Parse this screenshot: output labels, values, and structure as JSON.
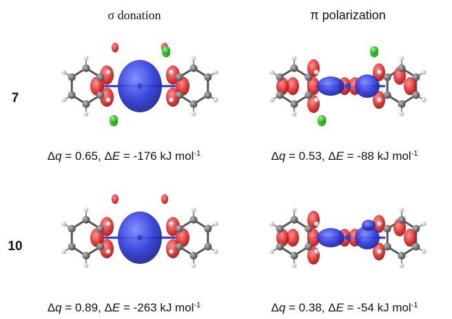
{
  "columns": [
    "σ donation",
    "π polarization"
  ],
  "rows": [
    {
      "label": "7",
      "captions": [
        [
          "Δ",
          "q",
          " = 0.65, Δ",
          "E",
          " = -176 kJ mol",
          "-1"
        ],
        [
          "Δ",
          "q",
          " = 0.53, Δ",
          "E",
          " = -88 kJ mol",
          "-1"
        ]
      ]
    },
    {
      "label": "10",
      "captions": [
        [
          "Δ",
          "q",
          " = 0.89, Δ",
          "E",
          " = -263 kJ mol",
          "-1"
        ],
        [
          "Δ",
          "q",
          " = 0.38, Δ",
          "E",
          " = -54 kJ mol",
          "-1"
        ]
      ]
    }
  ]
}
